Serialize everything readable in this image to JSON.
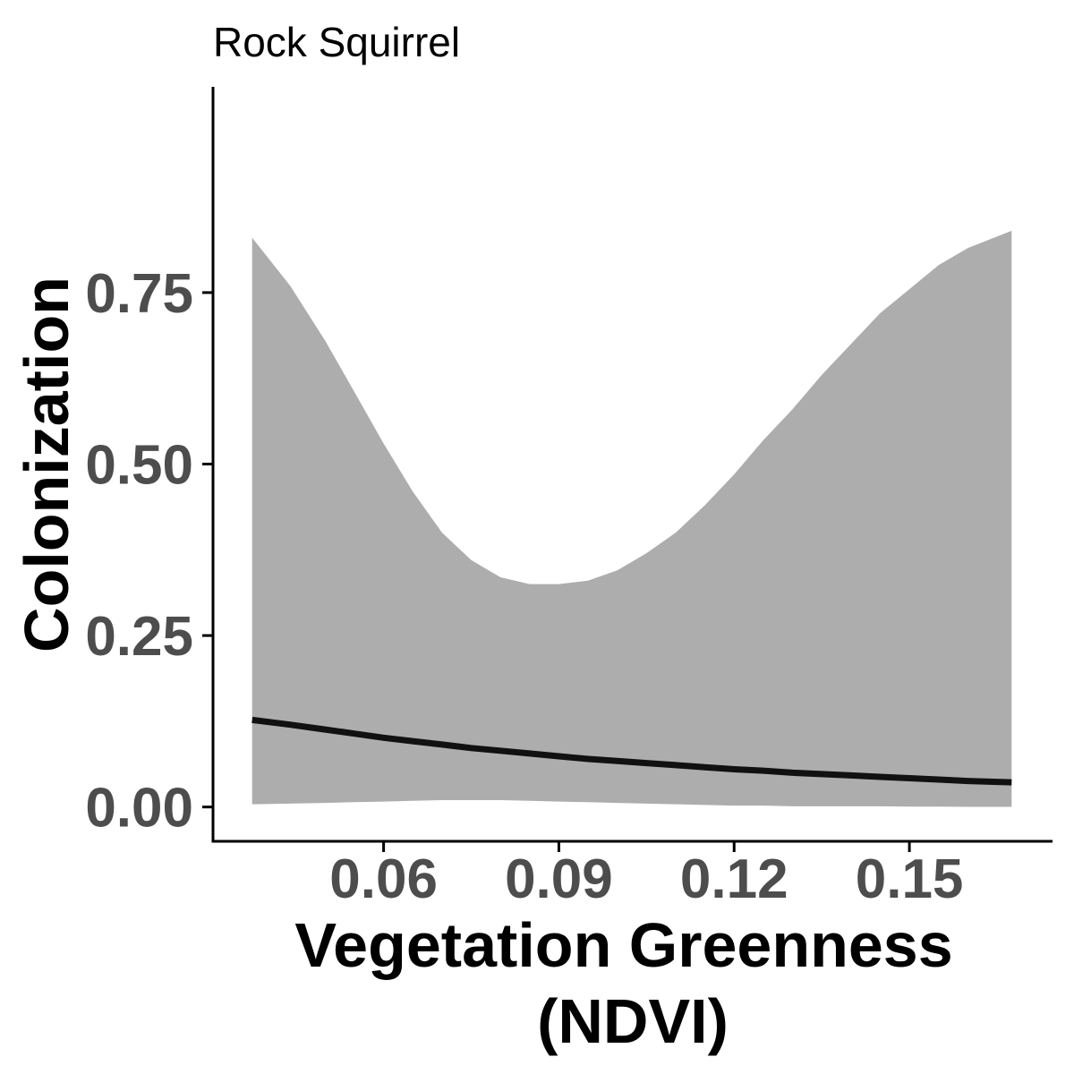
{
  "chart_data": {
    "type": "line",
    "title": "Rock Squirrel",
    "xlabel_lines": [
      "Vegetation Greenness",
      "(NDVI)"
    ],
    "ylabel": "Colonization",
    "xlim": [
      0.0308,
      0.1745
    ],
    "ylim": [
      -0.05,
      1.05
    ],
    "x_ticks": [
      {
        "value": 0.06,
        "label": "0.06"
      },
      {
        "value": 0.09,
        "label": "0.09"
      },
      {
        "value": 0.12,
        "label": "0.12"
      },
      {
        "value": 0.15,
        "label": "0.15"
      }
    ],
    "y_ticks": [
      {
        "value": 0.0,
        "label": "0.00"
      },
      {
        "value": 0.25,
        "label": "0.25"
      },
      {
        "value": 0.5,
        "label": "0.50"
      },
      {
        "value": 0.75,
        "label": "0.75"
      }
    ],
    "grid": false,
    "legend": "none",
    "series": [
      {
        "x": [
          0.0375,
          0.044,
          0.05,
          0.055,
          0.06,
          0.065,
          0.07,
          0.075,
          0.08,
          0.085,
          0.09,
          0.095,
          0.1,
          0.105,
          0.11,
          0.115,
          0.12,
          0.125,
          0.13,
          0.135,
          0.14,
          0.145,
          0.15,
          0.155,
          0.16,
          0.1675
        ],
        "y": [
          0.127,
          0.12,
          0.113,
          0.107,
          0.101,
          0.096,
          0.091,
          0.086,
          0.082,
          0.078,
          0.074,
          0.07,
          0.067,
          0.064,
          0.061,
          0.058,
          0.055,
          0.053,
          0.05,
          0.048,
          0.046,
          0.044,
          0.042,
          0.04,
          0.038,
          0.036
        ],
        "lower": [
          0.004,
          0.005,
          0.006,
          0.007,
          0.008,
          0.009,
          0.01,
          0.01,
          0.01,
          0.009,
          0.008,
          0.007,
          0.006,
          0.005,
          0.004,
          0.003,
          0.002,
          0.002,
          0.001,
          0.001,
          0.001,
          0.001,
          0.0005,
          0.0005,
          0.0003,
          0.0002
        ],
        "upper": [
          0.83,
          0.76,
          0.68,
          0.605,
          0.53,
          0.46,
          0.4,
          0.36,
          0.335,
          0.325,
          0.325,
          0.33,
          0.345,
          0.37,
          0.4,
          0.44,
          0.485,
          0.535,
          0.58,
          0.63,
          0.675,
          0.72,
          0.755,
          0.79,
          0.815,
          0.84
        ],
        "line_color": "#111111",
        "band_color": "#adadad"
      }
    ]
  }
}
